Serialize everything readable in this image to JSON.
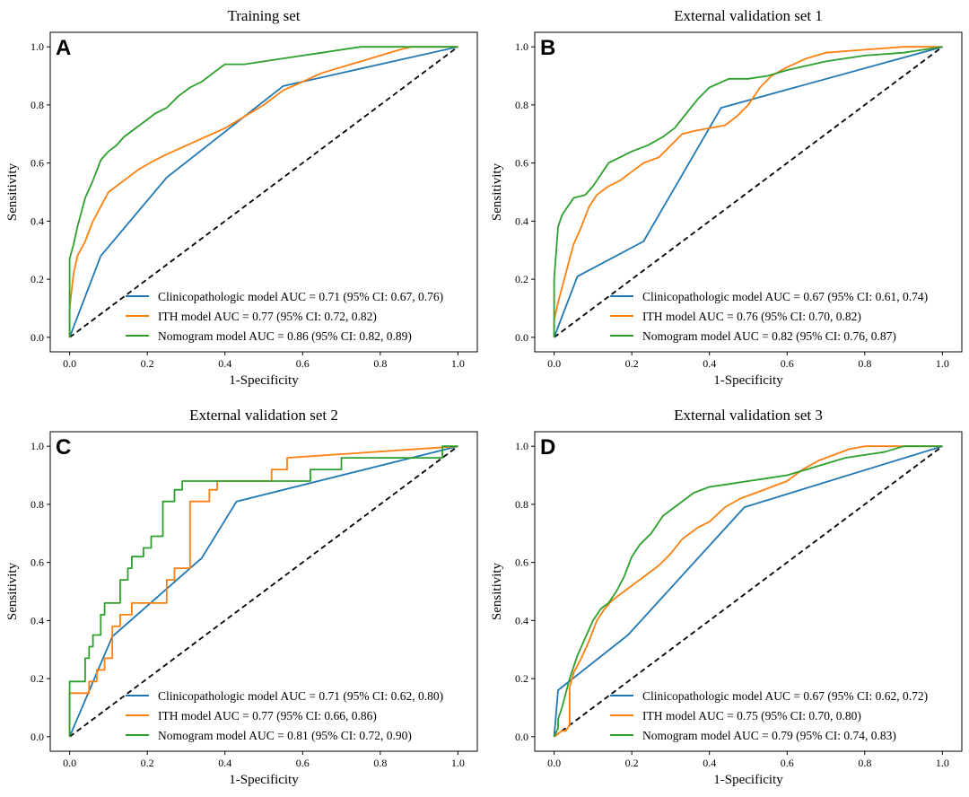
{
  "chart_data": [
    {
      "type": "line",
      "panel": "A",
      "title": "Training set",
      "xlabel": "1-Specificity",
      "ylabel": "Sensitivity",
      "xlim": [
        0,
        1
      ],
      "ylim": [
        0,
        1
      ],
      "xticks": [
        "0.0",
        "0.2",
        "0.4",
        "0.6",
        "0.8",
        "1.0"
      ],
      "yticks": [
        "0.0",
        "0.2",
        "0.4",
        "0.6",
        "0.8",
        "1.0"
      ],
      "legend_position": "lower-right",
      "reference_line": [
        [
          0,
          0
        ],
        [
          1,
          1
        ]
      ],
      "series": [
        {
          "name": "Clinicopathologic model AUC = 0.71 (95% CI: 0.67, 0.76)",
          "color": "#1f77b4",
          "x": [
            0,
            0.08,
            0.25,
            0.55,
            1.0
          ],
          "y": [
            0,
            0.28,
            0.55,
            0.865,
            1.0
          ]
        },
        {
          "name": "ITH model AUC = 0.77 (95% CI: 0.72, 0.82)",
          "color": "#ff7f0e",
          "x": [
            0,
            0.0,
            0.01,
            0.02,
            0.04,
            0.06,
            0.08,
            0.1,
            0.12,
            0.15,
            0.18,
            0.22,
            0.25,
            0.3,
            0.35,
            0.4,
            0.45,
            0.5,
            0.55,
            0.6,
            0.65,
            0.7,
            0.75,
            0.8,
            0.85,
            0.88,
            1.0
          ],
          "y": [
            0,
            0.1,
            0.22,
            0.28,
            0.33,
            0.4,
            0.45,
            0.5,
            0.52,
            0.55,
            0.58,
            0.61,
            0.63,
            0.66,
            0.69,
            0.72,
            0.76,
            0.8,
            0.85,
            0.88,
            0.91,
            0.93,
            0.95,
            0.97,
            0.99,
            1.0,
            1.0
          ]
        },
        {
          "name": "Nomogram model AUC = 0.86 (95% CI: 0.82, 0.89)",
          "color": "#2ca02c",
          "x": [
            0,
            0.0,
            0.01,
            0.02,
            0.03,
            0.04,
            0.05,
            0.06,
            0.08,
            0.1,
            0.12,
            0.14,
            0.16,
            0.18,
            0.2,
            0.22,
            0.25,
            0.28,
            0.31,
            0.34,
            0.37,
            0.4,
            0.45,
            0.5,
            0.55,
            0.6,
            0.65,
            0.7,
            0.75,
            0.8,
            0.85,
            1.0
          ],
          "y": [
            0,
            0.27,
            0.32,
            0.38,
            0.43,
            0.48,
            0.51,
            0.54,
            0.61,
            0.64,
            0.66,
            0.69,
            0.71,
            0.73,
            0.75,
            0.77,
            0.79,
            0.83,
            0.86,
            0.88,
            0.91,
            0.94,
            0.94,
            0.95,
            0.96,
            0.97,
            0.98,
            0.99,
            1.0,
            1.0,
            1.0,
            1.0
          ]
        }
      ]
    },
    {
      "type": "line",
      "panel": "B",
      "title": "External validation set 1",
      "xlabel": "1-Specificity",
      "ylabel": "Sensitivity",
      "xlim": [
        0,
        1
      ],
      "ylim": [
        0,
        1
      ],
      "xticks": [
        "0.0",
        "0.2",
        "0.4",
        "0.6",
        "0.8",
        "1.0"
      ],
      "yticks": [
        "0.0",
        "0.2",
        "0.4",
        "0.6",
        "0.8",
        "1.0"
      ],
      "legend_position": "lower-right",
      "reference_line": [
        [
          0,
          0
        ],
        [
          1,
          1
        ]
      ],
      "series": [
        {
          "name": "Clinicopathologic model AUC = 0.67 (95% CI: 0.61, 0.74)",
          "color": "#1f77b4",
          "x": [
            0,
            0.06,
            0.23,
            0.43,
            1.0
          ],
          "y": [
            0,
            0.21,
            0.33,
            0.79,
            1.0
          ]
        },
        {
          "name": "ITH model AUC = 0.76 (95% CI: 0.70, 0.82)",
          "color": "#ff7f0e",
          "x": [
            0,
            0.0,
            0.01,
            0.02,
            0.03,
            0.04,
            0.05,
            0.07,
            0.09,
            0.11,
            0.14,
            0.17,
            0.2,
            0.23,
            0.27,
            0.3,
            0.33,
            0.36,
            0.4,
            0.44,
            0.47,
            0.5,
            0.53,
            0.56,
            0.6,
            0.65,
            0.7,
            0.8,
            0.9,
            1.0
          ],
          "y": [
            0,
            0.06,
            0.12,
            0.17,
            0.22,
            0.27,
            0.32,
            0.38,
            0.45,
            0.49,
            0.52,
            0.54,
            0.57,
            0.6,
            0.62,
            0.66,
            0.7,
            0.71,
            0.72,
            0.73,
            0.76,
            0.8,
            0.86,
            0.9,
            0.93,
            0.96,
            0.98,
            0.99,
            1.0,
            1.0
          ]
        },
        {
          "name": "Nomogram model AUC = 0.82 (95% CI: 0.76, 0.87)",
          "color": "#2ca02c",
          "x": [
            0,
            0.0,
            0.01,
            0.02,
            0.03,
            0.05,
            0.08,
            0.1,
            0.12,
            0.14,
            0.17,
            0.2,
            0.24,
            0.28,
            0.31,
            0.34,
            0.37,
            0.4,
            0.45,
            0.5,
            0.55,
            0.6,
            0.7,
            0.8,
            0.9,
            1.0
          ],
          "y": [
            0,
            0.2,
            0.38,
            0.42,
            0.44,
            0.48,
            0.49,
            0.52,
            0.56,
            0.6,
            0.62,
            0.64,
            0.66,
            0.69,
            0.72,
            0.77,
            0.82,
            0.86,
            0.89,
            0.89,
            0.9,
            0.92,
            0.95,
            0.97,
            0.98,
            1.0
          ]
        }
      ]
    },
    {
      "type": "line",
      "panel": "C",
      "title": "External validation set 2",
      "xlabel": "1-Specificity",
      "ylabel": "Sensitivity",
      "xlim": [
        0,
        1
      ],
      "ylim": [
        0,
        1
      ],
      "xticks": [
        "0.0",
        "0.2",
        "0.4",
        "0.6",
        "0.8",
        "1.0"
      ],
      "yticks": [
        "0.0",
        "0.2",
        "0.4",
        "0.6",
        "0.8",
        "1.0"
      ],
      "legend_position": "lower-right",
      "reference_line": [
        [
          0,
          0
        ],
        [
          1,
          1
        ]
      ],
      "series": [
        {
          "name": "Clinicopathologic model AUC = 0.71 (95% CI: 0.62, 0.80)",
          "color": "#1f77b4",
          "x": [
            0,
            0.11,
            0.34,
            0.43,
            1.0
          ],
          "y": [
            0,
            0.345,
            0.615,
            0.81,
            1.0
          ]
        },
        {
          "name": "ITH model AUC = 0.77 (95% CI: 0.66, 0.86)",
          "color": "#ff7f0e",
          "x": [
            0,
            0.0,
            0.05,
            0.05,
            0.07,
            0.07,
            0.09,
            0.09,
            0.11,
            0.11,
            0.13,
            0.13,
            0.16,
            0.16,
            0.25,
            0.25,
            0.27,
            0.27,
            0.31,
            0.31,
            0.36,
            0.36,
            0.38,
            0.38,
            0.52,
            0.52,
            0.56,
            0.56,
            1.0
          ],
          "y": [
            0,
            0.15,
            0.15,
            0.19,
            0.19,
            0.23,
            0.23,
            0.27,
            0.27,
            0.38,
            0.38,
            0.42,
            0.42,
            0.46,
            0.46,
            0.54,
            0.54,
            0.58,
            0.58,
            0.81,
            0.81,
            0.85,
            0.85,
            0.88,
            0.88,
            0.92,
            0.92,
            0.96,
            1.0
          ]
        },
        {
          "name": "Nomogram model AUC = 0.81 (95% CI: 0.72, 0.90)",
          "color": "#2ca02c",
          "x": [
            0,
            0.0,
            0.04,
            0.04,
            0.05,
            0.05,
            0.06,
            0.06,
            0.08,
            0.08,
            0.09,
            0.09,
            0.13,
            0.13,
            0.15,
            0.15,
            0.16,
            0.16,
            0.19,
            0.19,
            0.21,
            0.21,
            0.24,
            0.24,
            0.27,
            0.27,
            0.29,
            0.29,
            0.31,
            0.31,
            0.62,
            0.62,
            0.7,
            0.7,
            0.96,
            0.96,
            1.0
          ],
          "y": [
            0,
            0.19,
            0.19,
            0.27,
            0.27,
            0.31,
            0.31,
            0.35,
            0.35,
            0.42,
            0.42,
            0.46,
            0.46,
            0.54,
            0.54,
            0.58,
            0.58,
            0.62,
            0.62,
            0.65,
            0.65,
            0.69,
            0.69,
            0.81,
            0.81,
            0.85,
            0.85,
            0.88,
            0.88,
            0.88,
            0.88,
            0.92,
            0.92,
            0.96,
            0.96,
            1.0,
            1.0
          ]
        }
      ]
    },
    {
      "type": "line",
      "panel": "D",
      "title": "External validation set 3",
      "xlabel": "1-Specificity",
      "ylabel": "Sensitivity",
      "xlim": [
        0,
        1
      ],
      "ylim": [
        0,
        1
      ],
      "xticks": [
        "0.0",
        "0.2",
        "0.4",
        "0.6",
        "0.8",
        "1.0"
      ],
      "yticks": [
        "0.0",
        "0.2",
        "0.4",
        "0.6",
        "0.8",
        "1.0"
      ],
      "legend_position": "lower-right",
      "reference_line": [
        [
          0,
          0
        ],
        [
          1,
          1
        ]
      ],
      "series": [
        {
          "name": "Clinicopathologic model AUC = 0.67 (95% CI: 0.62, 0.72)",
          "color": "#1f77b4",
          "x": [
            0,
            0.01,
            0.19,
            0.49,
            1.0
          ],
          "y": [
            0,
            0.16,
            0.35,
            0.79,
            1.0
          ]
        },
        {
          "name": "ITH model AUC = 0.75 (95% CI: 0.70, 0.80)",
          "color": "#ff7f0e",
          "x": [
            0,
            0.02,
            0.03,
            0.04,
            0.04,
            0.05,
            0.07,
            0.09,
            0.11,
            0.13,
            0.15,
            0.18,
            0.21,
            0.24,
            0.27,
            0.3,
            0.33,
            0.37,
            0.4,
            0.44,
            0.48,
            0.52,
            0.56,
            0.6,
            0.64,
            0.68,
            0.72,
            0.76,
            0.8,
            0.86,
            1.0
          ],
          "y": [
            0,
            0.02,
            0.02,
            0.04,
            0.17,
            0.22,
            0.27,
            0.33,
            0.4,
            0.44,
            0.47,
            0.5,
            0.53,
            0.56,
            0.59,
            0.63,
            0.68,
            0.72,
            0.74,
            0.79,
            0.82,
            0.84,
            0.86,
            0.88,
            0.92,
            0.95,
            0.97,
            0.99,
            1.0,
            1.0,
            1.0
          ]
        },
        {
          "name": "Nomogram model AUC = 0.79 (95% CI: 0.74, 0.83)",
          "color": "#2ca02c",
          "x": [
            0,
            0.01,
            0.01,
            0.02,
            0.03,
            0.04,
            0.05,
            0.06,
            0.08,
            0.1,
            0.12,
            0.14,
            0.16,
            0.18,
            0.2,
            0.22,
            0.25,
            0.28,
            0.3,
            0.32,
            0.36,
            0.4,
            0.45,
            0.5,
            0.55,
            0.6,
            0.65,
            0.7,
            0.75,
            0.8,
            0.85,
            0.9,
            1.0
          ],
          "y": [
            0,
            0.03,
            0.06,
            0.1,
            0.15,
            0.2,
            0.24,
            0.28,
            0.34,
            0.4,
            0.44,
            0.46,
            0.5,
            0.55,
            0.62,
            0.66,
            0.7,
            0.76,
            0.78,
            0.8,
            0.84,
            0.86,
            0.87,
            0.88,
            0.89,
            0.9,
            0.92,
            0.94,
            0.96,
            0.97,
            0.98,
            1.0,
            1.0
          ]
        }
      ]
    }
  ]
}
